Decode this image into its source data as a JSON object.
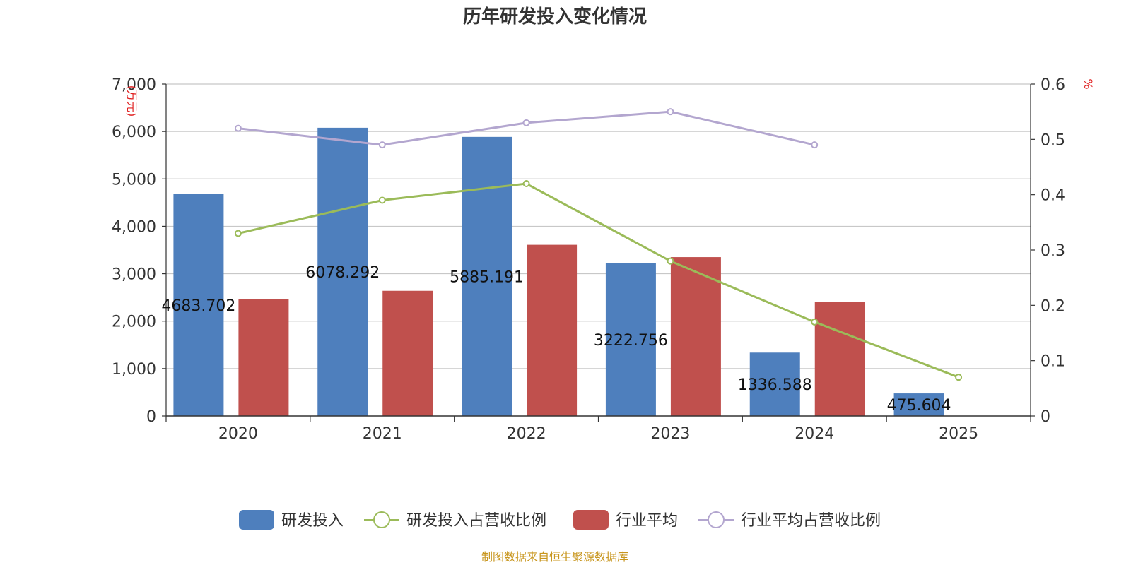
{
  "title": "历年研发投入变化情况",
  "source": "制图数据来自恒生聚源数据库",
  "colors": {
    "rd_bar": "#4e7fbd",
    "rd_ratio_line": "#9bbb59",
    "industry_bar": "#c0504d",
    "industry_ratio_line": "#b3a6cf",
    "grid": "#c8c8c8",
    "axis": "#333333",
    "unit": "#e02020",
    "source": "#c8961e"
  },
  "chart_data": {
    "type": "bar",
    "title": "历年研发投入变化情况",
    "categories": [
      "2020",
      "2021",
      "2022",
      "2023",
      "2024",
      "2025"
    ],
    "y_left": {
      "unit": "(万元)",
      "ylim": [
        0,
        7000
      ],
      "ticks": [
        0,
        1000,
        2000,
        3000,
        4000,
        5000,
        6000,
        7000
      ],
      "tick_labels": [
        "0",
        "1,000",
        "2,000",
        "3,000",
        "4,000",
        "5,000",
        "6,000",
        "7,000"
      ]
    },
    "y_right": {
      "unit": "%",
      "ylim": [
        0,
        0.6
      ],
      "ticks": [
        0,
        0.1,
        0.2,
        0.3,
        0.4,
        0.5,
        0.6
      ],
      "tick_labels": [
        "0",
        "0.1",
        "0.2",
        "0.3",
        "0.4",
        "0.5",
        "0.6"
      ]
    },
    "grid": true,
    "legend_position": "bottom-center",
    "series": [
      {
        "name": "研发投入",
        "kind": "bar",
        "axis": "left",
        "values": [
          4683.702,
          6078.292,
          5885.191,
          3222.756,
          1336.588,
          475.604
        ],
        "labels": [
          "4683.702",
          "6078.292",
          "5885.191",
          "3222.756",
          "1336.588",
          "475.604"
        ]
      },
      {
        "name": "研发投入占营收比例",
        "kind": "line",
        "axis": "right",
        "values": [
          0.33,
          0.39,
          0.42,
          0.28,
          0.17,
          0.07
        ]
      },
      {
        "name": "行业平均",
        "kind": "bar",
        "axis": "left",
        "values": [
          2470,
          2640,
          3610,
          3350,
          2410,
          null
        ]
      },
      {
        "name": "行业平均占营收比例",
        "kind": "line",
        "axis": "right",
        "values": [
          0.52,
          0.49,
          0.53,
          0.55,
          0.49,
          null
        ]
      }
    ]
  }
}
